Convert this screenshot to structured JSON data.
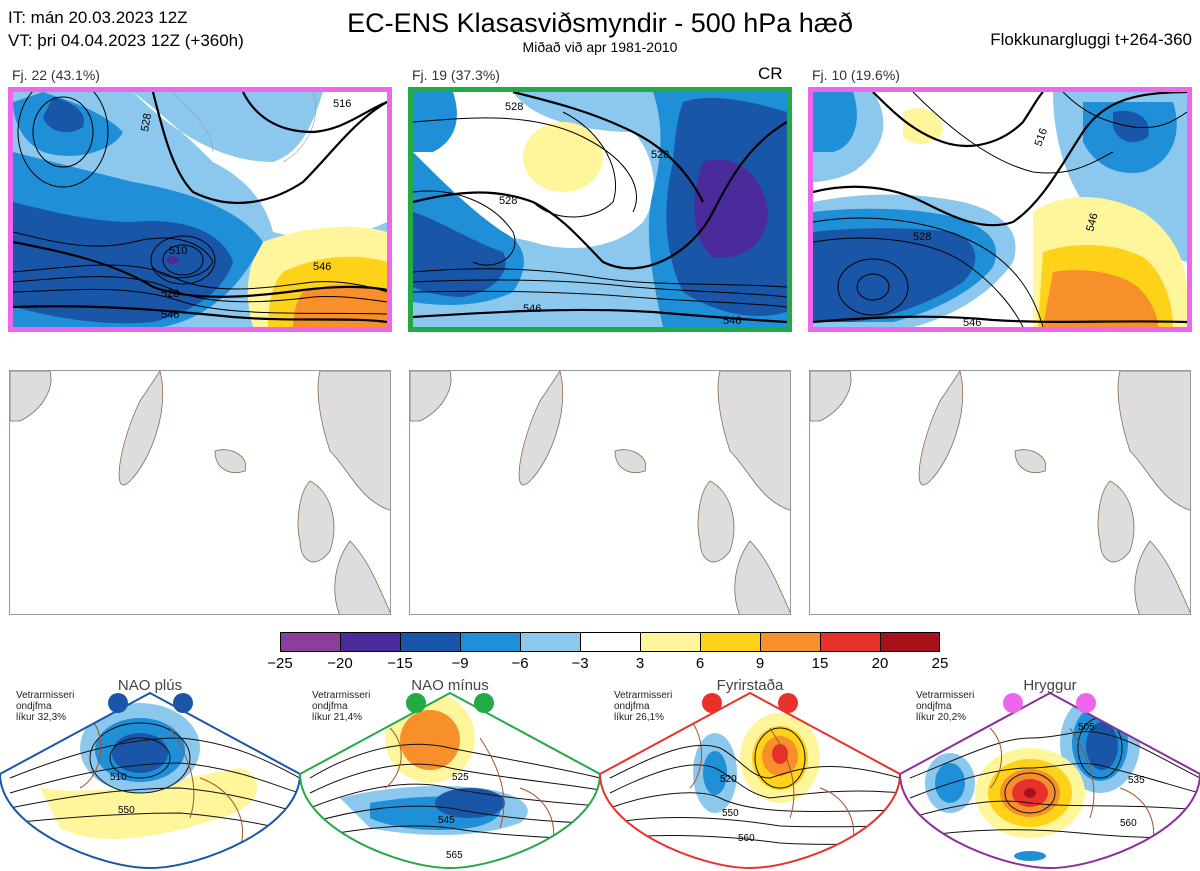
{
  "header": {
    "it_line": "IT: mán 20.03.2023 12Z",
    "vt_line": "VT: þri 04.04.2023 12Z  (+360h)",
    "title": "EC-ENS Klasasviðsmyndir - 500 hPa hæð",
    "subtitle": "Miðað við apr 1981-2010",
    "window": "Flokkunargluggi t+264-360"
  },
  "clusters": [
    {
      "label": "Fj. 22 (43.1%)",
      "members": 22,
      "percent": 43.1,
      "frame_color": "#ee66ee",
      "badge": "",
      "contour_labels": [
        "510",
        "528",
        "546",
        "516",
        "528",
        "546"
      ]
    },
    {
      "label": "Fj. 19 (37.3%)",
      "members": 19,
      "percent": 37.3,
      "frame_color": "#22aa44",
      "badge": "CR",
      "contour_labels": [
        "528",
        "546",
        "528",
        "528",
        "546"
      ]
    },
    {
      "label": "Fj. 10 (19.6%)",
      "members": 10,
      "percent": 19.6,
      "frame_color": "#ee66ee",
      "badge": "",
      "contour_labels": [
        "528",
        "546",
        "516",
        "546"
      ]
    }
  ],
  "colorbar": {
    "ticks": [
      "−25",
      "−20",
      "−15",
      "−9",
      "−6",
      "−3",
      "3",
      "6",
      "9",
      "15",
      "20",
      "25"
    ],
    "colors": [
      "#8b3f9a",
      "#4b2a9b",
      "#1a56a8",
      "#1f8fd8",
      "#8cc8ee",
      "#ffffff",
      "#fff59a",
      "#ffd21a",
      "#f7902a",
      "#e8312a",
      "#a8101a"
    ]
  },
  "regimes": [
    {
      "name": "NAO plús",
      "note_1": "Vetrarmisseri",
      "note_2": "ondjfma",
      "note_3": "líkur 32,3%",
      "color": "#1a56a8",
      "contour_labels": [
        "510",
        "550"
      ]
    },
    {
      "name": "NAO mínus",
      "note_1": "Vetrarmisseri",
      "note_2": "ondjfma",
      "note_3": "líkur 21,4%",
      "color": "#22aa44",
      "contour_labels": [
        "525",
        "545",
        "565"
      ]
    },
    {
      "name": "Fyrirstaða",
      "note_1": "Vetrarmisseri",
      "note_2": "ondjfma",
      "note_3": "líkur 26,1%",
      "color": "#e8312a",
      "contour_labels": [
        "520",
        "550",
        "560"
      ]
    },
    {
      "name": "Hryggur",
      "note_1": "Vetrarmisseri",
      "note_2": "ondjfma",
      "note_3": "líkur 20,2%",
      "color": "#ee66ee",
      "contour_labels": [
        "505",
        "535",
        "560"
      ]
    }
  ]
}
